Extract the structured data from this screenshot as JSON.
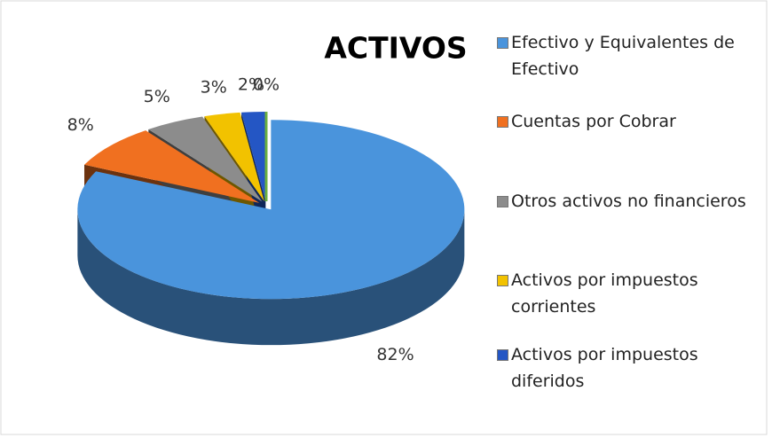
{
  "chart_data": {
    "type": "pie3d",
    "title": "ACTIVOS",
    "categories": [
      "Efectivo y Equivalentes de Efectivo",
      "Cuentas por Cobrar",
      "Otros activos no financieros",
      "Activos por impuestos corrientes",
      "Activos por impuestos diferidos",
      null
    ],
    "values": [
      82,
      8,
      5,
      3,
      2,
      0
    ],
    "value_labels": [
      "82%",
      "8%",
      "5%",
      "3%",
      "2%",
      "0%"
    ],
    "colors": [
      "#4a94dc",
      "#f07020",
      "#8c8c8c",
      "#f2c200",
      "#2456c4",
      "#6cb040"
    ],
    "legend": "right"
  }
}
